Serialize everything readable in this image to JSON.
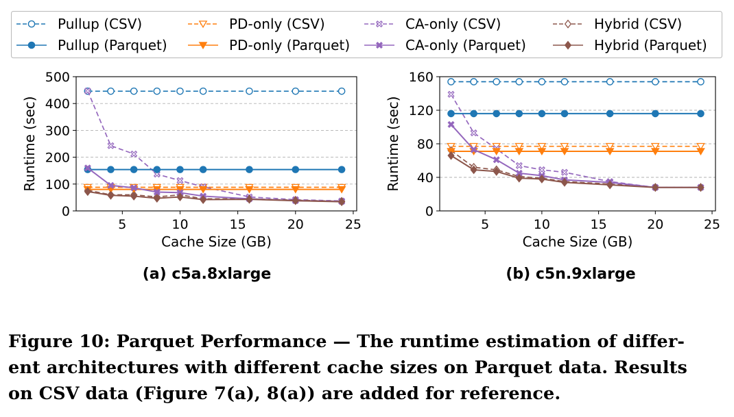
{
  "legend": [
    {
      "label": "Pullup (CSV)",
      "color": "#1f77b4",
      "dashed": true,
      "marker": "circle"
    },
    {
      "label": "PD-only (CSV)",
      "color": "#ff7f0e",
      "dashed": true,
      "marker": "triangle-down"
    },
    {
      "label": "CA-only (CSV)",
      "color": "#9467bd",
      "dashed": true,
      "marker": "x"
    },
    {
      "label": "Hybrid (CSV)",
      "color": "#8c564b",
      "dashed": true,
      "marker": "diamond"
    },
    {
      "label": "Pullup (Parquet)",
      "color": "#1f77b4",
      "dashed": false,
      "marker": "circle"
    },
    {
      "label": "PD-only (Parquet)",
      "color": "#ff7f0e",
      "dashed": false,
      "marker": "triangle-down"
    },
    {
      "label": "CA-only (Parquet)",
      "color": "#9467bd",
      "dashed": false,
      "marker": "x"
    },
    {
      "label": "Hybrid (Parquet)",
      "color": "#8c564b",
      "dashed": false,
      "marker": "diamond"
    }
  ],
  "chart_data": [
    {
      "type": "line",
      "title": "(a) c5a.8xlarge",
      "xlabel": "Cache Size (GB)",
      "ylabel": "Runtime (sec)",
      "xlim": [
        1.0,
        25.3
      ],
      "ylim": [
        0,
        500
      ],
      "xticks": [
        5,
        10,
        15,
        20,
        25
      ],
      "yticks": [
        0,
        100,
        200,
        300,
        400,
        500
      ],
      "grid": "horizontal dashed",
      "x": [
        2,
        4,
        6,
        8,
        10,
        12,
        16,
        20,
        24
      ],
      "series": [
        {
          "name": "Pullup (CSV)",
          "values": [
            446,
            446,
            446,
            446,
            446,
            446,
            446,
            446,
            446
          ]
        },
        {
          "name": "PD-only (CSV)",
          "values": [
            88,
            88,
            88,
            88,
            88,
            88,
            88,
            88,
            88
          ]
        },
        {
          "name": "CA-only (CSV)",
          "values": [
            447,
            243,
            212,
            137,
            113,
            90,
            52,
            42,
            37
          ]
        },
        {
          "name": "Hybrid (CSV)",
          "values": [
            77,
            60,
            60,
            52,
            60,
            45,
            45,
            40,
            36
          ]
        },
        {
          "name": "Pullup (Parquet)",
          "values": [
            154,
            154,
            154,
            154,
            154,
            154,
            154,
            154,
            154
          ]
        },
        {
          "name": "PD-only (Parquet)",
          "values": [
            80,
            80,
            80,
            80,
            80,
            80,
            80,
            80,
            80
          ]
        },
        {
          "name": "CA-only (Parquet)",
          "values": [
            160,
            95,
            86,
            70,
            68,
            55,
            45,
            38,
            35
          ]
        },
        {
          "name": "Hybrid (Parquet)",
          "values": [
            72,
            58,
            55,
            47,
            52,
            42,
            43,
            38,
            34
          ]
        }
      ]
    },
    {
      "type": "line",
      "title": "(b) c5n.9xlarge",
      "xlabel": "Cache Size (GB)",
      "ylabel": "Runtime (sec)",
      "xlim": [
        1.0,
        25.3
      ],
      "ylim": [
        0,
        160
      ],
      "xticks": [
        5,
        10,
        15,
        20,
        25
      ],
      "yticks": [
        0,
        40,
        80,
        120,
        160
      ],
      "grid": "horizontal dashed",
      "x": [
        2,
        4,
        6,
        8,
        10,
        12,
        16,
        20,
        24
      ],
      "series": [
        {
          "name": "Pullup (CSV)",
          "values": [
            154,
            154,
            154,
            154,
            154,
            154,
            154,
            154,
            154
          ]
        },
        {
          "name": "PD-only (CSV)",
          "values": [
            77,
            77,
            77,
            77,
            77,
            77,
            77,
            77,
            77
          ]
        },
        {
          "name": "CA-only (CSV)",
          "values": [
            139,
            93,
            74,
            54,
            49,
            46,
            35,
            28,
            28
          ]
        },
        {
          "name": "Hybrid (CSV)",
          "values": [
            72,
            52,
            49,
            41,
            39,
            35,
            32,
            28,
            28
          ]
        },
        {
          "name": "Pullup (Parquet)",
          "values": [
            116,
            116,
            116,
            116,
            116,
            116,
            116,
            116,
            116
          ]
        },
        {
          "name": "PD-only (Parquet)",
          "values": [
            71,
            71,
            71,
            71,
            71,
            71,
            71,
            71,
            71
          ]
        },
        {
          "name": "CA-only (Parquet)",
          "values": [
            103,
            73,
            61,
            45,
            42,
            37,
            34,
            28,
            28
          ]
        },
        {
          "name": "Hybrid (Parquet)",
          "values": [
            66,
            49,
            47,
            39,
            38,
            34,
            31,
            28,
            28
          ]
        }
      ]
    }
  ],
  "caption": {
    "line1": "Figure 10: Parquet Performance — The runtime estimation of differ-",
    "line2": "ent architectures with different cache sizes on Parquet data. Results",
    "line3": "on CSV data (Figure 7(a), 8(a)) are added for reference."
  }
}
